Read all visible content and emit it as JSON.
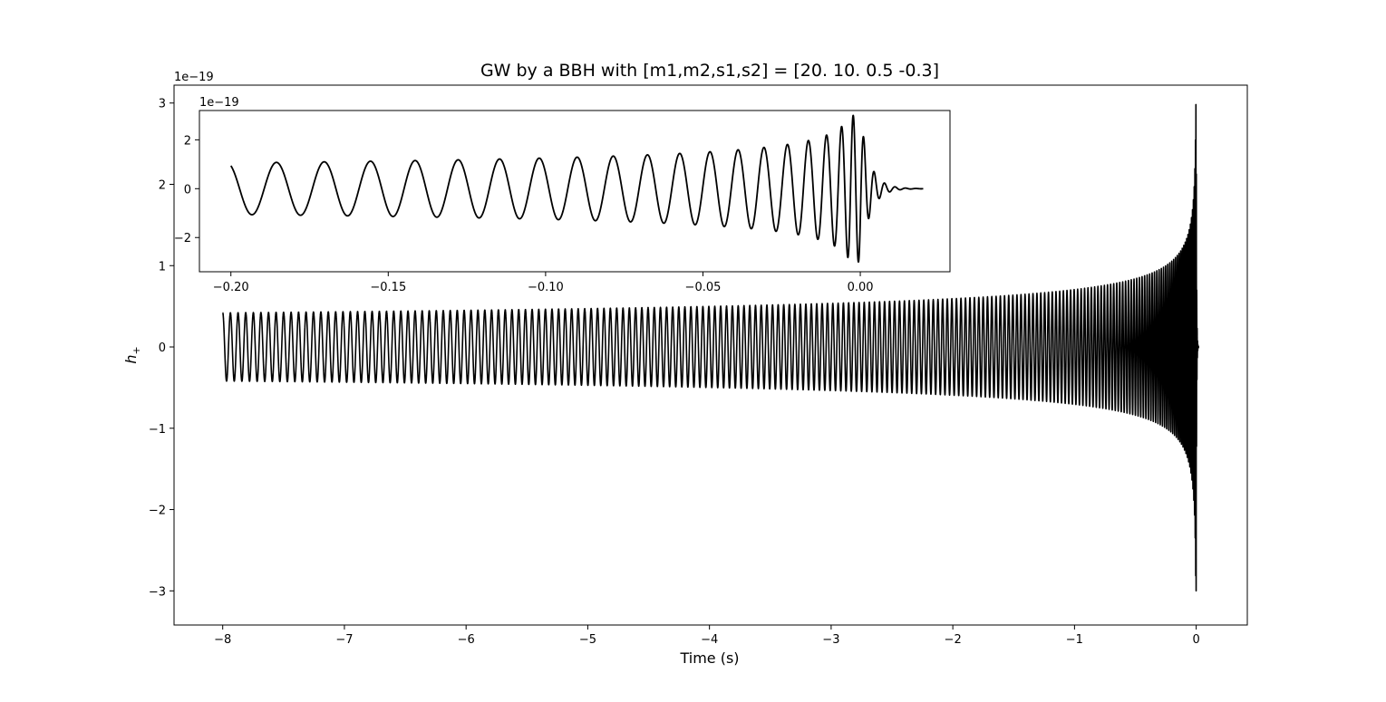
{
  "chart_data": [
    {
      "type": "line",
      "role": "main",
      "title": "GW by a BBH with [m1,m2,s1,s2] = [20.  10.   0.5 -0.3]",
      "xlabel": "Time (s)",
      "ylabel": "h+",
      "ylabel_main": "h",
      "ylabel_sub": "+",
      "offset_text": "1e−19",
      "xlim": [
        -8.4,
        0.42
      ],
      "ylim": [
        -3.42,
        3.22
      ],
      "xticks": [
        -8,
        -7,
        -6,
        -5,
        -4,
        -3,
        -2,
        -1,
        0
      ],
      "xtick_labels": [
        "−8",
        "−7",
        "−6",
        "−5",
        "−4",
        "−3",
        "−2",
        "−1",
        "0"
      ],
      "yticks": [
        -3,
        -2,
        -1,
        0,
        1,
        2,
        3
      ],
      "ytick_labels": [
        "−3",
        "−2",
        "−1",
        "0",
        "1",
        "2",
        "3"
      ],
      "series": [
        {
          "name": "h_plus",
          "color": "#000000",
          "signal": {
            "t_start": -8.0,
            "t_merger": 0.0,
            "t_end": 0.02,
            "amp_start": 0.42,
            "amp_peak": 3.0,
            "f_start": 15.8,
            "amp_exponent": 0.25,
            "freq_exponent": 0.375,
            "ringdown_tau": 0.003,
            "ringdown_freq": 300
          }
        }
      ]
    },
    {
      "type": "line",
      "role": "inset",
      "xlim": [
        -0.21,
        0.0285
      ],
      "ylim": [
        -3.4,
        3.2
      ],
      "offset_text": "1e−19",
      "xticks": [
        -0.2,
        -0.15,
        -0.1,
        -0.05,
        0.0
      ],
      "xtick_labels": [
        "−0.20",
        "−0.15",
        "−0.10",
        "−0.05",
        "0.00"
      ],
      "yticks": [
        2,
        0,
        -2
      ],
      "ytick_labels": [
        "2",
        "0",
        "−2"
      ],
      "series": [
        {
          "name": "h_plus_zoom",
          "color": "#000000",
          "t_start": -0.2,
          "t_end": 0.02
        }
      ]
    }
  ]
}
